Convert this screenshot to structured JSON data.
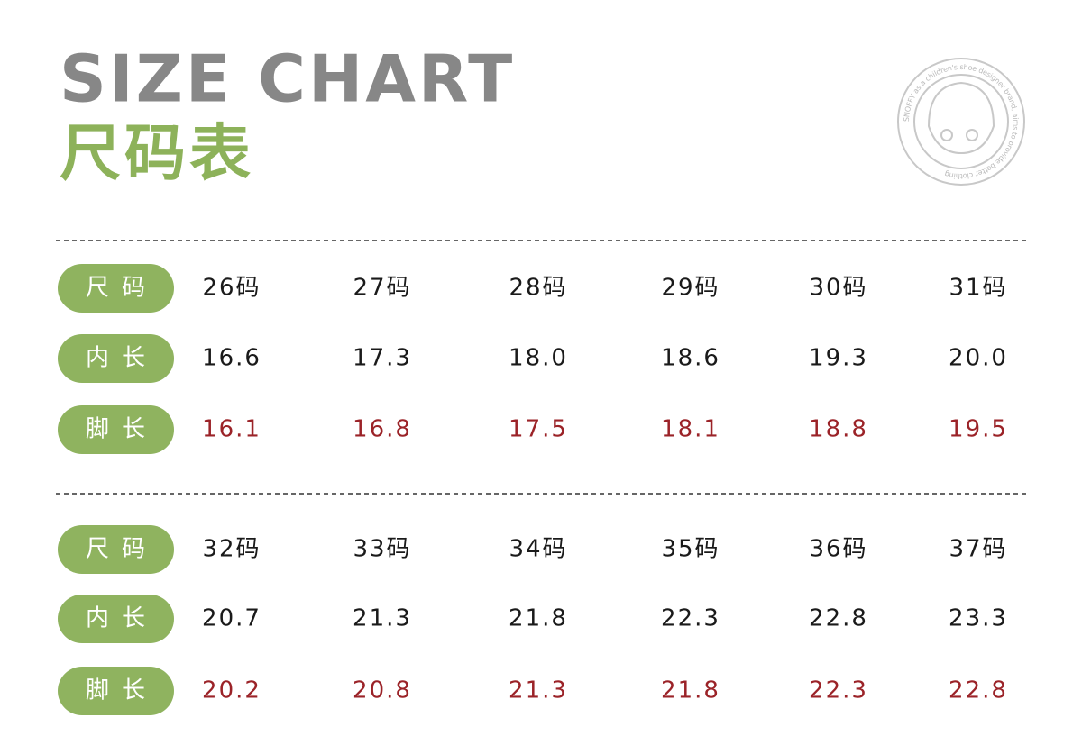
{
  "header": {
    "title": "SIZE CHART",
    "subtitle": "尺码表",
    "logo_text": "SNOFFY as a children's shoe designer brand, aims to provide better clothing"
  },
  "tables": [
    {
      "rows": [
        {
          "label": "尺码",
          "cells": [
            "26码",
            "27码",
            "28码",
            "29码",
            "30码",
            "31码"
          ]
        },
        {
          "label": "内长",
          "cells": [
            "16.6",
            "17.3",
            "18.0",
            "18.6",
            "19.3",
            "20.0"
          ]
        },
        {
          "label": "脚长",
          "cells": [
            "16.1",
            "16.8",
            "17.5",
            "18.1",
            "18.8",
            "19.5"
          ]
        }
      ]
    },
    {
      "rows": [
        {
          "label": "尺码",
          "cells": [
            "32码",
            "33码",
            "34码",
            "35码",
            "36码",
            "37码"
          ]
        },
        {
          "label": "内长",
          "cells": [
            "20.7",
            "21.3",
            "21.8",
            "22.3",
            "22.8",
            "23.3"
          ]
        },
        {
          "label": "脚长",
          "cells": [
            "20.2",
            "20.8",
            "21.3",
            "21.8",
            "22.3",
            "22.8"
          ]
        }
      ]
    }
  ]
}
